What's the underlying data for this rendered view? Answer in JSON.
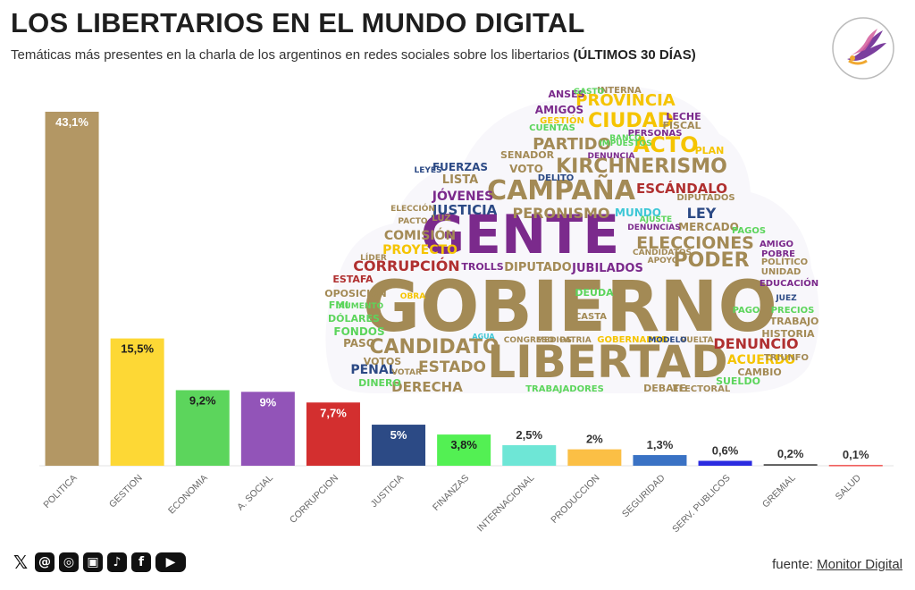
{
  "title": "LOS LIBERTARIOS EN EL MUNDO DIGITAL",
  "subtitle_main": "Temáticas más presentes en la charla de los argentinos en redes sociales sobre los libertarios ",
  "subtitle_bold": "(ÚLTIMOS 30 DÍAS)",
  "source_label": "fuente: ",
  "source_link": "Monitor Digital",
  "social_icons": [
    "x-icon",
    "threads-icon",
    "instagram-icon",
    "gallery-icon",
    "tiktok-icon",
    "facebook-icon",
    "youtube-icon"
  ],
  "chart_data": {
    "type": "bar",
    "categories": [
      "POLITICA",
      "GESTION",
      "ECONOMIA",
      "A. SOCIAL",
      "CORRUPCION",
      "JUSTICIA",
      "FINANZAS",
      "INTERNACIONAL",
      "PRODUCCION",
      "SEGURIDAD",
      "SERV. PUBLICOS",
      "GREMIAL",
      "SALUD"
    ],
    "values": [
      43.1,
      15.5,
      9.2,
      9,
      7.7,
      5,
      3.8,
      2.5,
      2,
      1.3,
      0.6,
      0.2,
      0.1
    ],
    "value_labels": [
      "43,1%",
      "15,5%",
      "9,2%",
      "9%",
      "7,7%",
      "5%",
      "3,8%",
      "2,5%",
      "2%",
      "1,3%",
      "0,6%",
      "0,2%",
      "0,1%"
    ],
    "colors": [
      "#b39764",
      "#fdd835",
      "#5cd55c",
      "#9254b8",
      "#d32f2f",
      "#2c4a85",
      "#53f053",
      "#6ee6d6",
      "#fbbf45",
      "#3a72c4",
      "#2b2be0",
      "#555555",
      "#ef5350"
    ],
    "ylim": [
      0,
      43.1
    ],
    "grid": false,
    "legend": "none"
  },
  "word_cloud": {
    "words": [
      {
        "text": "GOBIERNO",
        "color": "#a38a55"
      },
      {
        "text": "GENTE",
        "color": "#7b2a8c"
      },
      {
        "text": "LIBERTAD",
        "color": "#a38a55"
      },
      {
        "text": "CAMPAÑA",
        "color": "#a38a55"
      },
      {
        "text": "CANDIDATO",
        "color": "#a38a55"
      },
      {
        "text": "KIRCHNERISMO",
        "color": "#a38a55"
      },
      {
        "text": "ELECCIONES",
        "color": "#a38a55"
      },
      {
        "text": "PODER",
        "color": "#a38a55"
      },
      {
        "text": "CIUDAD",
        "color": "#f5c400"
      },
      {
        "text": "PROVINCIA",
        "color": "#f5c400"
      },
      {
        "text": "ACTO",
        "color": "#f5c400"
      },
      {
        "text": "PARTIDO",
        "color": "#a38a55"
      },
      {
        "text": "ESCÁNDALO",
        "color": "#b03030"
      },
      {
        "text": "PERONISMO",
        "color": "#a38a55"
      },
      {
        "text": "CORRUPCIÓN",
        "color": "#b03030"
      },
      {
        "text": "ESTADO",
        "color": "#a38a55"
      },
      {
        "text": "DERECHA",
        "color": "#a38a55"
      },
      {
        "text": "DENUNCIÓ",
        "color": "#b03030"
      },
      {
        "text": "ACUERDO",
        "color": "#f5c400"
      },
      {
        "text": "JÓVENES",
        "color": "#7b2a8c"
      },
      {
        "text": "JUSTICIA",
        "color": "#2c4a85"
      },
      {
        "text": "LEY",
        "color": "#2c4a85"
      },
      {
        "text": "COMISIÓN",
        "color": "#a38a55"
      },
      {
        "text": "PROYECTO",
        "color": "#f5c400"
      },
      {
        "text": "DIPUTADO",
        "color": "#a38a55"
      },
      {
        "text": "JUBILADOS",
        "color": "#7b2a8c"
      },
      {
        "text": "FUERZAS",
        "color": "#2c4a85"
      },
      {
        "text": "LISTA",
        "color": "#a38a55"
      },
      {
        "text": "MUNDO",
        "color": "#3ec7d6"
      },
      {
        "text": "MERCADO",
        "color": "#a38a55"
      },
      {
        "text": "TRABAJADORES",
        "color": "#5cd55c"
      },
      {
        "text": "DÓLARES",
        "color": "#5cd55c"
      },
      {
        "text": "FONDOS",
        "color": "#5cd55c"
      },
      {
        "text": "PENAL",
        "color": "#2c4a85"
      },
      {
        "text": "ESTAFA",
        "color": "#b03030"
      },
      {
        "text": "VOTO",
        "color": "#a38a55"
      },
      {
        "text": "SENADOR",
        "color": "#a38a55"
      },
      {
        "text": "AMIGOS",
        "color": "#7b2a8c"
      },
      {
        "text": "ANSES",
        "color": "#7b2a8c"
      },
      {
        "text": "INTERNA",
        "color": "#a38a55"
      },
      {
        "text": "DEBATE",
        "color": "#a38a55"
      },
      {
        "text": "CAMBIO",
        "color": "#a38a55"
      },
      {
        "text": "TRABAJO",
        "color": "#a38a55"
      },
      {
        "text": "HISTORIA",
        "color": "#a38a55"
      },
      {
        "text": "POLÍTICO",
        "color": "#a38a55"
      },
      {
        "text": "EDUCACIÓN",
        "color": "#7b2a8c"
      },
      {
        "text": "PRECIOS",
        "color": "#5cd55c"
      },
      {
        "text": "DIPUTADOS",
        "color": "#a38a55"
      },
      {
        "text": "PASO",
        "color": "#a38a55"
      },
      {
        "text": "VOTOS",
        "color": "#a38a55"
      },
      {
        "text": "DINERO",
        "color": "#5cd55c"
      },
      {
        "text": "FMI",
        "color": "#5cd55c"
      },
      {
        "text": "OPOSICIÓN",
        "color": "#a38a55"
      },
      {
        "text": "TROLLS",
        "color": "#7b2a8c"
      },
      {
        "text": "DEUDA",
        "color": "#5cd55c"
      },
      {
        "text": "CUENTAS",
        "color": "#5cd55c"
      },
      {
        "text": "GESTIÓN",
        "color": "#f5c400"
      },
      {
        "text": "LECHE",
        "color": "#7b2a8c"
      },
      {
        "text": "FISCAL",
        "color": "#a38a55"
      },
      {
        "text": "PERSONAS",
        "color": "#7b2a8c"
      },
      {
        "text": "PLAN",
        "color": "#f5c400"
      },
      {
        "text": "GOBERNADOR",
        "color": "#f5c400"
      },
      {
        "text": "ELECTORAL",
        "color": "#a38a55"
      },
      {
        "text": "SUELDO",
        "color": "#5cd55c"
      },
      {
        "text": "TRIUNFO",
        "color": "#a38a55"
      },
      {
        "text": "PAGOS",
        "color": "#5cd55c"
      },
      {
        "text": "AMIGO",
        "color": "#7b2a8c"
      },
      {
        "text": "POBRE",
        "color": "#7b2a8c"
      },
      {
        "text": "UNIDAD",
        "color": "#a38a55"
      },
      {
        "text": "CASTA",
        "color": "#a38a55"
      },
      {
        "text": "VUELTA",
        "color": "#a38a55"
      },
      {
        "text": "CONGRESO",
        "color": "#a38a55"
      },
      {
        "text": "MEDIOS",
        "color": "#a38a55"
      },
      {
        "text": "PATRIA",
        "color": "#a38a55"
      },
      {
        "text": "MODELO",
        "color": "#2c4a85"
      },
      {
        "text": "PAGO",
        "color": "#5cd55c"
      },
      {
        "text": "JUEZ",
        "color": "#2c4a85"
      },
      {
        "text": "OBRA",
        "color": "#f5c400"
      },
      {
        "text": "AUMENTO",
        "color": "#5cd55c"
      },
      {
        "text": "LÍDER",
        "color": "#a38a55"
      },
      {
        "text": "PACTO",
        "color": "#a38a55"
      },
      {
        "text": "LUZ",
        "color": "#a38a55"
      },
      {
        "text": "ELECCIÓN",
        "color": "#a38a55"
      },
      {
        "text": "LEYES",
        "color": "#2c4a85"
      },
      {
        "text": "DELITO",
        "color": "#2c4a85"
      },
      {
        "text": "IMPUESTOS",
        "color": "#5cd55c"
      },
      {
        "text": "BANCO",
        "color": "#5cd55c"
      },
      {
        "text": "GASTO",
        "color": "#5cd55c"
      },
      {
        "text": "DENUNCIA",
        "color": "#7b2a8c"
      },
      {
        "text": "CANDIDATOS",
        "color": "#a38a55"
      },
      {
        "text": "APOYO",
        "color": "#a38a55"
      },
      {
        "text": "AJUSTE",
        "color": "#5cd55c"
      },
      {
        "text": "DENUNCIAS",
        "color": "#7b2a8c"
      },
      {
        "text": "VOTAR",
        "color": "#a38a55"
      },
      {
        "text": "AGUA",
        "color": "#3ec7d6"
      },
      {
        "text": "DÓLAR",
        "color": "#5cd55c"
      }
    ]
  }
}
